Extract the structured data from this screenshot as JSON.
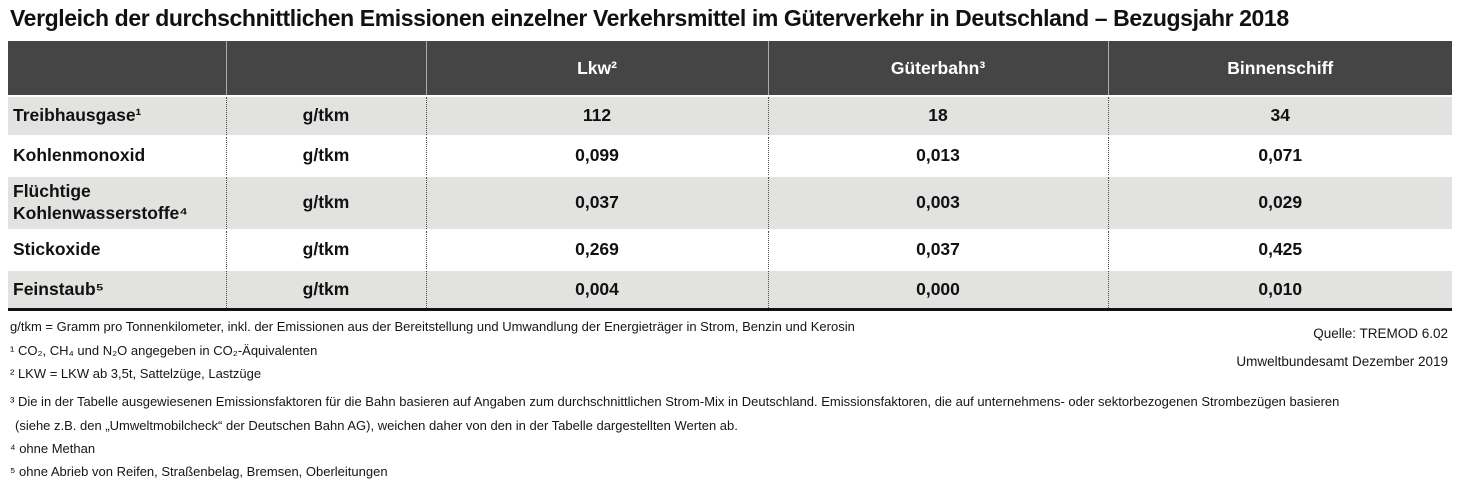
{
  "title": "Vergleich der durchschnittlichen Emissionen einzelner Verkehrsmittel im Güterverkehr in Deutschland – Bezugsjahr 2018",
  "chart_data": {
    "type": "table",
    "title": "Vergleich der durchschnittlichen Emissionen einzelner Verkehrsmittel im Güterverkehr in Deutschland – Bezugsjahr 2018",
    "columns": [
      "",
      "",
      "Lkw²",
      "Güterbahn³",
      "Binnenschiff"
    ],
    "unit": "g/tkm",
    "rows": [
      {
        "label": "Treibhausgase¹",
        "unit": "g/tkm",
        "values": [
          "112",
          "18",
          "34"
        ]
      },
      {
        "label": "Kohlenmonoxid",
        "unit": "g/tkm",
        "values": [
          "0,099",
          "0,013",
          "0,071"
        ]
      },
      {
        "label": "Flüchtige Kohlenwasserstoffe⁴",
        "unit": "g/tkm",
        "values": [
          "0,037",
          "0,003",
          "0,029"
        ]
      },
      {
        "label": "Stickoxide",
        "unit": "g/tkm",
        "values": [
          "0,269",
          "0,037",
          "0,425"
        ]
      },
      {
        "label": "Feinstaub⁵",
        "unit": "g/tkm",
        "values": [
          "0,004",
          "0,000",
          "0,010"
        ]
      }
    ]
  },
  "footnotes": {
    "unit_note": "g/tkm = Gramm pro Tonnenkilometer, inkl. der Emissionen aus der Bereitstellung und Umwandlung der Energieträger in Strom, Benzin und Kerosin",
    "fn1": "¹ CO₂, CH₄ und N₂O angegeben in CO₂-Äquivalenten",
    "fn2": "² LKW = LKW ab 3,5t, Sattelzüge, Lastzüge",
    "fn3": "³ Die in der Tabelle ausgewiesenen Emissionsfaktoren für die Bahn basieren auf Angaben zum durchschnittlichen Strom-Mix in Deutschland. Emissionsfaktoren, die auf unternehmens- oder sektorbezogenen Strombezügen basieren",
    "fn3b": "(siehe z.B. den „Umweltmobilcheck“ der Deutschen Bahn AG), weichen daher von den in der Tabelle dargestellten Werten ab.",
    "fn4": "⁴ ohne Methan",
    "fn5": "⁵ ohne Abrieb von Reifen, Straßenbelag, Bremsen, Oberleitungen"
  },
  "source": {
    "quelle": "Quelle: TREMOD 6.02",
    "publisher": "Umweltbundesamt Dezember 2019"
  },
  "colors": {
    "header_bg": "#454545",
    "header_text": "#ffffff",
    "row_alt_bg": "#e2e2e1",
    "row_bg": "#ffffff",
    "text": "#1a1a1a",
    "table_bottom_border": "#111111"
  }
}
